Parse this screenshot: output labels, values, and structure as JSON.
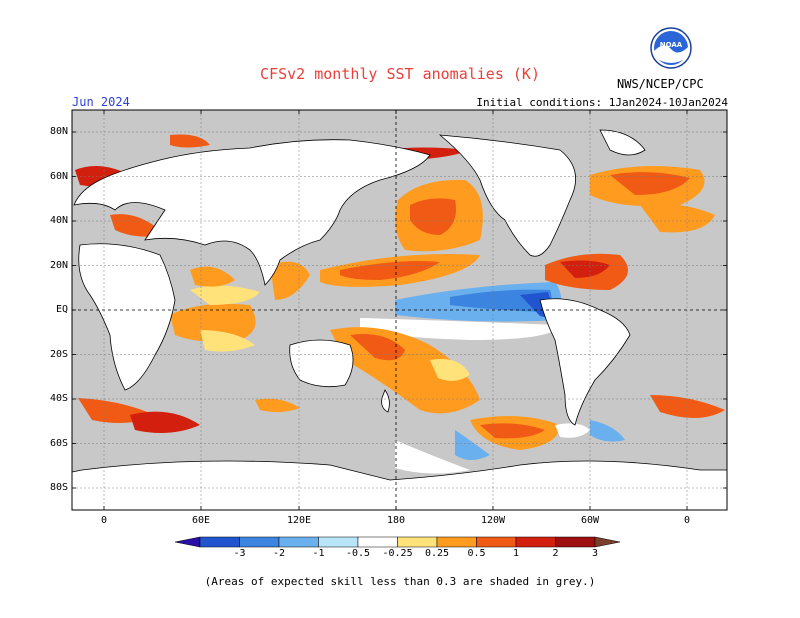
{
  "header": {
    "title": "CFSv2 monthly SST anomalies (K)",
    "subtitle": "NWS/NCEP/CPC",
    "month": "Jun 2024",
    "initial_conditions": "Initial conditions: 1Jan2024-10Jan2024"
  },
  "logo": {
    "text": "NOAA",
    "icon": "noaa-logo-icon"
  },
  "axes": {
    "lat_labels": [
      "80N",
      "60N",
      "40N",
      "20N",
      "EQ",
      "20S",
      "40S",
      "60S",
      "80S"
    ],
    "lon_labels": [
      "0",
      "60E",
      "120E",
      "180",
      "120W",
      "60W",
      "0"
    ]
  },
  "colorbar": {
    "labels": [
      "-3",
      "-2",
      "-1",
      "-0.5",
      "-0.25",
      "0.25",
      "0.5",
      "1",
      "2",
      "3"
    ],
    "colors": [
      "#2a0fa8",
      "#2155cf",
      "#3b84e0",
      "#6ab0ee",
      "#b8e6f8",
      "#ffffff",
      "#ffe27a",
      "#ff9b1f",
      "#f05a14",
      "#d21f0e",
      "#9e0f0f",
      "#7a3f2a"
    ]
  },
  "footer": {
    "note": "(Areas of expected skill less than 0.3 are shaded in grey.)"
  },
  "map_colors": {
    "background": "#c8c8c8",
    "land": "#ffffff",
    "coast": "#000000"
  }
}
